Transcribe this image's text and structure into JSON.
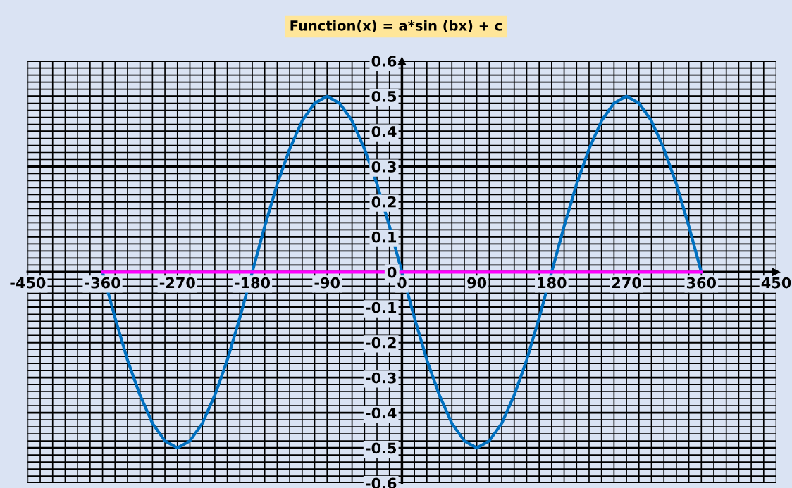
{
  "chart_data": {
    "type": "line",
    "title": "Function(x) = a*sin (bx) + c",
    "series": [
      {
        "color": "#0070c0",
        "x": [
          -360,
          -345,
          -330,
          -315,
          -300,
          -285,
          -270,
          -255,
          -240,
          -225,
          -210,
          -195,
          -180,
          -165,
          -150,
          -135,
          -120,
          -105,
          -90,
          -75,
          -60,
          -45,
          -30,
          -15,
          0,
          15,
          30,
          45,
          60,
          75,
          90,
          105,
          120,
          135,
          150,
          165,
          180,
          195,
          210,
          225,
          240,
          255,
          270,
          285,
          300,
          315,
          330,
          345,
          360
        ],
        "values": [
          0,
          -0.13,
          -0.25,
          -0.35,
          -0.43,
          -0.48,
          -0.5,
          -0.48,
          -0.43,
          -0.35,
          -0.25,
          -0.13,
          0,
          0.13,
          0.25,
          0.35,
          0.43,
          0.48,
          0.5,
          0.48,
          0.43,
          0.35,
          0.25,
          0.13,
          0,
          -0.13,
          -0.25,
          -0.35,
          -0.43,
          -0.48,
          -0.5,
          -0.48,
          -0.43,
          -0.35,
          -0.25,
          -0.13,
          0,
          0.13,
          0.25,
          0.35,
          0.43,
          0.48,
          0.5,
          0.48,
          0.43,
          0.35,
          0.25,
          0.13,
          0
        ]
      },
      {
        "color": "#ff00ff",
        "x": [
          -360,
          360
        ],
        "values": [
          0,
          0
        ]
      }
    ],
    "xlim": [
      -450,
      450
    ],
    "xticks": [
      -450,
      -360,
      -270,
      -180,
      -90,
      0,
      90,
      180,
      270,
      360,
      450
    ],
    "ylim": [
      -0.6,
      0.6
    ],
    "yticks": [
      -0.6,
      -0.5,
      -0.4,
      -0.3,
      -0.2,
      -0.1,
      0,
      0.1,
      0.2,
      0.3,
      0.4,
      0.5,
      0.6
    ],
    "grid": true,
    "marker": "none",
    "line_style": "solid"
  }
}
